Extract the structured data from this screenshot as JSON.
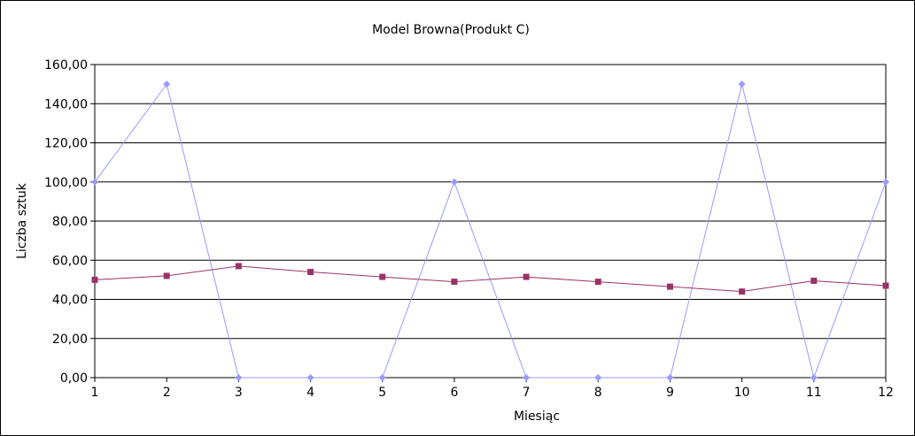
{
  "chart_data": {
    "type": "line",
    "title": "Model Browna(Produkt C)",
    "xlabel": "Miesiąc",
    "ylabel": "Liczba sztuk",
    "x": [
      1,
      2,
      3,
      4,
      5,
      6,
      7,
      8,
      9,
      10,
      11,
      12
    ],
    "ylim": [
      0,
      160
    ],
    "yticks": [
      "0,00",
      "20,00",
      "40,00",
      "60,00",
      "80,00",
      "100,00",
      "120,00",
      "140,00",
      "160,00"
    ],
    "xticks": [
      "1",
      "2",
      "3",
      "4",
      "5",
      "6",
      "7",
      "8",
      "9",
      "10",
      "11",
      "12"
    ],
    "grid": true,
    "series": [
      {
        "values": [
          100,
          150,
          0,
          0,
          0,
          100,
          0,
          0,
          0,
          150,
          0,
          100
        ],
        "color": "#9999ff",
        "marker": "diamond"
      },
      {
        "values": [
          50,
          52,
          57,
          54,
          51.5,
          49,
          51.5,
          49,
          46.5,
          44,
          49.5,
          47
        ],
        "color": "#993366",
        "marker": "square"
      }
    ]
  }
}
